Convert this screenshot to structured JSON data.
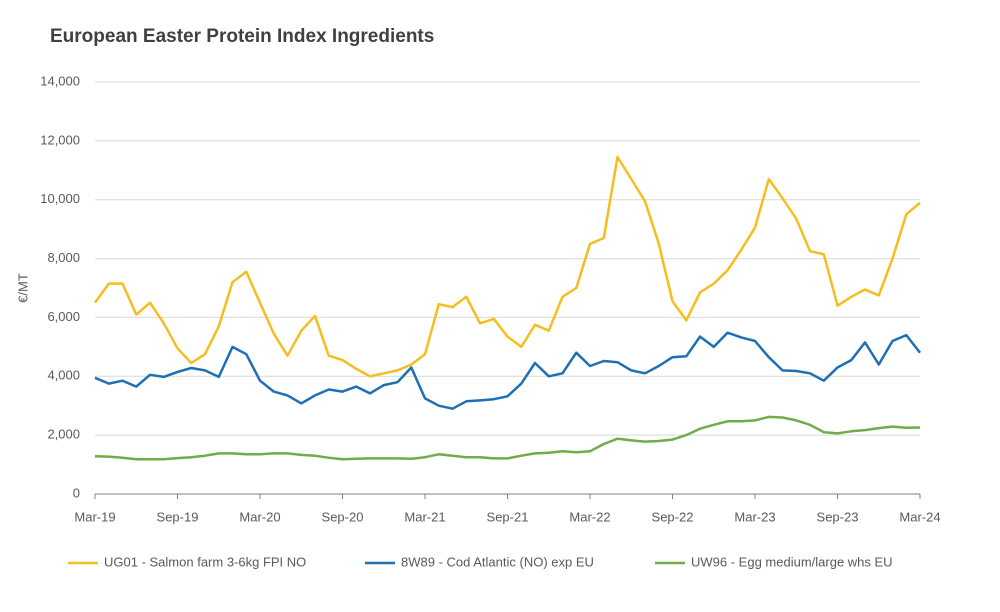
{
  "chart_data": {
    "type": "line",
    "title": "European Easter Protein Index Ingredients",
    "y_label": "€/MT",
    "categories": [
      "Mar-19",
      null,
      null,
      null,
      null,
      null,
      "Sep-19",
      null,
      null,
      null,
      null,
      null,
      "Mar-20",
      null,
      null,
      null,
      null,
      null,
      "Sep-20",
      null,
      null,
      null,
      null,
      null,
      "Mar-21",
      null,
      null,
      null,
      null,
      null,
      "Sep-21",
      null,
      null,
      null,
      null,
      null,
      "Mar-22",
      null,
      null,
      null,
      null,
      null,
      "Sep-22",
      null,
      null,
      null,
      null,
      null,
      "Mar-23",
      null,
      null,
      null,
      null,
      null,
      "Sep-23",
      null,
      null,
      null,
      null,
      null,
      "Mar-24"
    ],
    "series": [
      {
        "name": "UG01 - Salmon farm 3-6kg FPI NO",
        "color": "#f5be1e",
        "values": [
          6500,
          7150,
          7150,
          6100,
          6500,
          5800,
          4950,
          4450,
          4750,
          5700,
          7200,
          7550,
          6500,
          5450,
          4700,
          5550,
          6050,
          4700,
          4550,
          4250,
          4000,
          4100,
          4200,
          4400,
          4750,
          6450,
          6350,
          6700,
          5800,
          5950,
          5350,
          5000,
          5750,
          5550,
          6700,
          7000,
          8500,
          8700,
          11450,
          10700,
          9950,
          8500,
          6550,
          5900,
          6850,
          7150,
          7600,
          8300,
          9050,
          10700,
          10050,
          9350,
          8250,
          8150,
          6400,
          6700,
          6950,
          6750,
          8000,
          9500,
          9900
        ]
      },
      {
        "name": "8W89 - Cod Atlantic (NO) exp EU",
        "color": "#1f6fb5",
        "values": [
          3950,
          3750,
          3850,
          3650,
          4050,
          3980,
          4150,
          4280,
          4200,
          3980,
          5000,
          4750,
          3850,
          3480,
          3350,
          3080,
          3350,
          3550,
          3480,
          3650,
          3420,
          3700,
          3800,
          4300,
          3250,
          3000,
          2900,
          3150,
          3180,
          3220,
          3320,
          3750,
          4450,
          4000,
          4100,
          4800,
          4350,
          4520,
          4480,
          4200,
          4100,
          4350,
          4650,
          4680,
          5350,
          5000,
          5480,
          5320,
          5200,
          4650,
          4200,
          4180,
          4100,
          3850,
          4300,
          4550,
          5150,
          4400,
          5200,
          5400,
          4800
        ]
      },
      {
        "name": "UW96 - Egg medium/large whs EU",
        "color": "#70ad47",
        "values": [
          1280,
          1270,
          1230,
          1180,
          1180,
          1180,
          1220,
          1250,
          1300,
          1380,
          1380,
          1350,
          1350,
          1380,
          1380,
          1330,
          1300,
          1230,
          1180,
          1200,
          1210,
          1210,
          1210,
          1200,
          1250,
          1350,
          1300,
          1250,
          1250,
          1210,
          1210,
          1300,
          1380,
          1400,
          1450,
          1420,
          1450,
          1700,
          1880,
          1820,
          1780,
          1800,
          1850,
          2000,
          2220,
          2350,
          2470,
          2470,
          2500,
          2620,
          2600,
          2500,
          2350,
          2100,
          2060,
          2130,
          2170,
          2240,
          2290,
          2250,
          2260
        ]
      }
    ],
    "ylim": [
      0,
      14000
    ],
    "yticks": [
      0,
      {
        "value": 2000,
        "label": "2,000"
      },
      {
        "value": 4000,
        "label": "4,000"
      },
      {
        "value": 6000,
        "label": "6,000"
      },
      {
        "value": 8000,
        "label": "8,000"
      },
      {
        "value": 10000,
        "label": "10,000"
      },
      {
        "value": 12000,
        "label": "12,000"
      },
      {
        "value": 14000,
        "label": "14,000"
      }
    ],
    "grid": true,
    "legend": "bottom"
  }
}
